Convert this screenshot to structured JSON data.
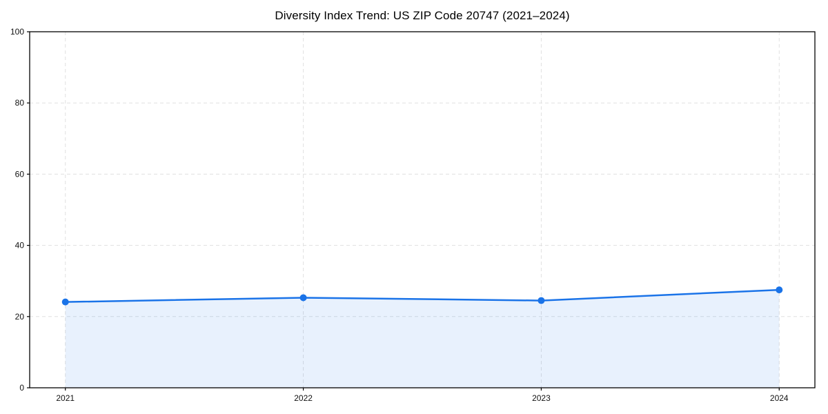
{
  "chart_data": {
    "type": "line",
    "title": "Diversity Index Trend: US ZIP Code 20747 (2021–2024)",
    "x": [
      2021,
      2022,
      2023,
      2024
    ],
    "categories": [
      "2021",
      "2022",
      "2023",
      "2024"
    ],
    "series": [
      {
        "name": "Diversity Index",
        "values": [
          24.1,
          25.3,
          24.5,
          27.5
        ]
      }
    ],
    "xlabel": "",
    "ylabel": "",
    "ylim": [
      0,
      100
    ],
    "yticks": [
      0,
      20,
      40,
      60,
      80,
      100
    ],
    "grid": true,
    "grid_style": "dashed",
    "legend_position": "none",
    "area_fill": true,
    "colors": {
      "line": "#1a73e8",
      "marker": "#1a73e8",
      "fill": "#1a73e8",
      "fill_opacity": 0.1,
      "grid": "#e0e0e0",
      "spine": "#000000",
      "tick_label": "#111111",
      "title": "#000000"
    }
  }
}
